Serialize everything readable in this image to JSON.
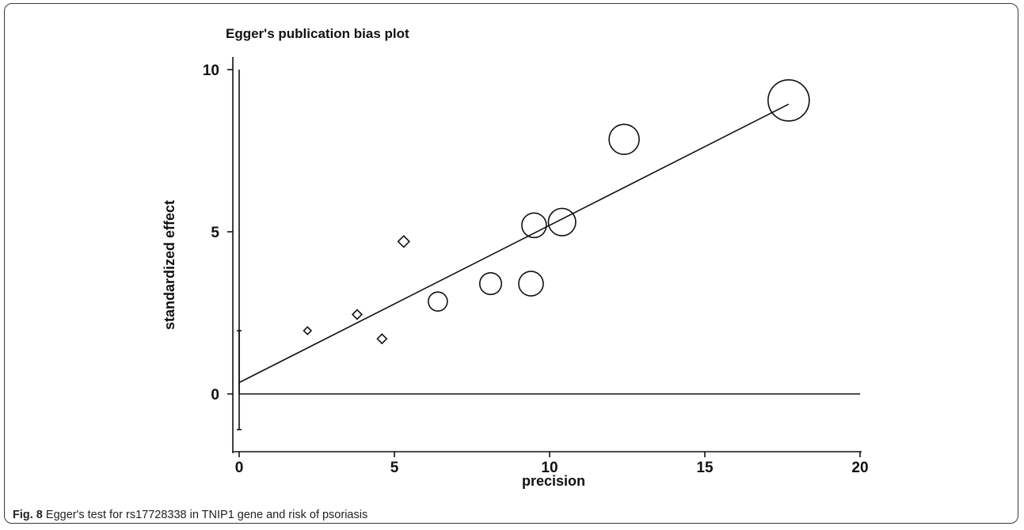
{
  "chart_data": {
    "type": "scatter",
    "title": "Egger's publication bias plot",
    "xlabel": "precision",
    "ylabel": "standardized effect",
    "xlim": [
      0,
      20
    ],
    "ylim": [
      -1.3,
      10.3
    ],
    "xticks": [
      0,
      5,
      10,
      15,
      20
    ],
    "yticks": [
      0,
      5,
      10
    ],
    "points": [
      {
        "x": 2.2,
        "y": 1.95,
        "marker": "diamond",
        "weight": 1
      },
      {
        "x": 3.8,
        "y": 2.45,
        "marker": "diamond",
        "weight": 2
      },
      {
        "x": 4.6,
        "y": 1.7,
        "marker": "diamond",
        "weight": 2
      },
      {
        "x": 5.3,
        "y": 4.7,
        "marker": "diamond",
        "weight": 3
      },
      {
        "x": 6.4,
        "y": 2.85,
        "marker": "circle",
        "weight": 4
      },
      {
        "x": 8.1,
        "y": 3.4,
        "marker": "circle",
        "weight": 5
      },
      {
        "x": 9.4,
        "y": 3.4,
        "marker": "circle",
        "weight": 6
      },
      {
        "x": 9.5,
        "y": 5.2,
        "marker": "circle",
        "weight": 6
      },
      {
        "x": 10.4,
        "y": 5.3,
        "marker": "circle",
        "weight": 7
      },
      {
        "x": 12.4,
        "y": 7.85,
        "marker": "circle",
        "weight": 8
      },
      {
        "x": 17.7,
        "y": 9.05,
        "marker": "circle",
        "weight": 12
      }
    ],
    "regression_line": {
      "intercept": 0.35,
      "slope": 0.485,
      "x_range": [
        0,
        17.7
      ]
    },
    "intercept_ci": {
      "x": 0,
      "low": -1.1,
      "high": 1.95
    },
    "reference_lines": {
      "x0_top": 10,
      "y0_right": 20
    }
  },
  "caption": {
    "label": "Fig. 8",
    "text": "Egger's test for rs17728338 in TNIP1 gene and risk of psoriasis"
  }
}
